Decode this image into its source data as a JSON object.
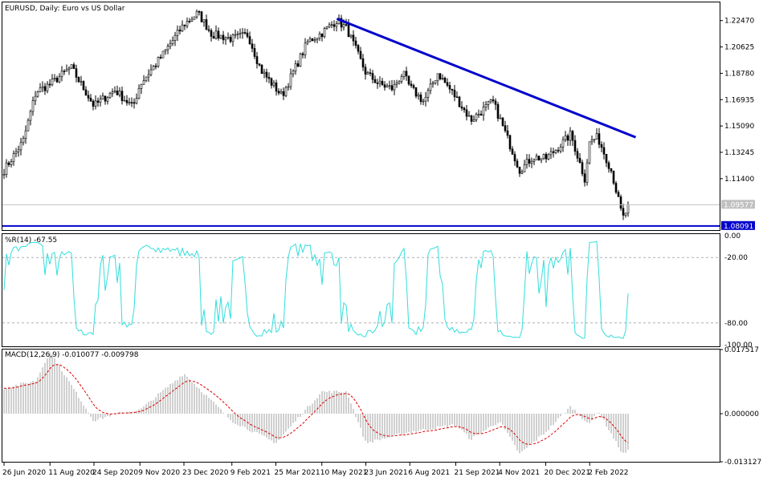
{
  "main": {
    "title": "EURUSD, Daily:  Euro vs US Dollar",
    "price_axis_labels": [
      "1.22470",
      "1.20625",
      "1.18780",
      "1.16935",
      "1.15090",
      "1.13245",
      "1.11400"
    ],
    "current_price_label": "1.09577",
    "support_price_label": "1.08091",
    "colors": {
      "candle": "#000000",
      "trendline": "#0000cc",
      "support_line": "#0000cc",
      "current_line": "#c0c0c0"
    }
  },
  "wpr": {
    "label": "%R(14) -67.55",
    "axis_labels": [
      "0.00",
      "-20.00",
      "-80.00",
      "-100.00"
    ],
    "color": "#33dddd"
  },
  "macd": {
    "label": "MACD(12,26,9) -0.010077 -0.009798",
    "axis_labels": [
      "0.017517",
      "0.000000",
      "-0.013127"
    ],
    "histogram_color": "#a0a0a0",
    "signal_color": "#dd0000"
  },
  "time_axis_labels": [
    "26 Jun 2020",
    "11 Aug 2020",
    "24 Sep 2020",
    "9 Nov 2020",
    "23 Dec 2020",
    "9 Feb 2021",
    "25 Mar 2021",
    "10 May 2021",
    "23 Jun 2021",
    "6 Aug 2021",
    "21 Sep 2021",
    "4 Nov 2021",
    "20 Dec 2021",
    "2 Feb 2022"
  ],
  "chart_data": [
    {
      "type": "candlestick",
      "title": "EURUSD, Daily:  Euro vs US Dollar",
      "x_range": [
        "26 Jun 2020",
        "Mar 2022"
      ],
      "ylim": [
        1.078,
        1.238
      ],
      "close_path": [
        {
          "x": "26 Jun 2020",
          "y": 1.12
        },
        {
          "x": "15 Jul 2020",
          "y": 1.14
        },
        {
          "x": "28 Jul 2020",
          "y": 1.175
        },
        {
          "x": "11 Aug 2020",
          "y": 1.18
        },
        {
          "x": "1 Sep 2020",
          "y": 1.192
        },
        {
          "x": "24 Sep 2020",
          "y": 1.165
        },
        {
          "x": "15 Oct 2020",
          "y": 1.176
        },
        {
          "x": "2 Nov 2020",
          "y": 1.164
        },
        {
          "x": "9 Nov 2020",
          "y": 1.18
        },
        {
          "x": "1 Dec 2020",
          "y": 1.2
        },
        {
          "x": "23 Dec 2020",
          "y": 1.222
        },
        {
          "x": "6 Jan 2021",
          "y": 1.23
        },
        {
          "x": "20 Jan 2021",
          "y": 1.215
        },
        {
          "x": "9 Feb 2021",
          "y": 1.212
        },
        {
          "x": "25 Feb 2021",
          "y": 1.215
        },
        {
          "x": "10 Mar 2021",
          "y": 1.19
        },
        {
          "x": "31 Mar 2021",
          "y": 1.172
        },
        {
          "x": "26 Apr 2021",
          "y": 1.21
        },
        {
          "x": "10 May 2021",
          "y": 1.216
        },
        {
          "x": "25 May 2021",
          "y": 1.225
        },
        {
          "x": "4 Jun 2021",
          "y": 1.219
        },
        {
          "x": "23 Jun 2021",
          "y": 1.188
        },
        {
          "x": "7 Jul 2021",
          "y": 1.18
        },
        {
          "x": "20 Jul 2021",
          "y": 1.177
        },
        {
          "x": "30 Jul 2021",
          "y": 1.188
        },
        {
          "x": "6 Aug 2021",
          "y": 1.178
        },
        {
          "x": "20 Aug 2021",
          "y": 1.168
        },
        {
          "x": "3 Sep 2021",
          "y": 1.188
        },
        {
          "x": "21 Sep 2021",
          "y": 1.171
        },
        {
          "x": "6 Oct 2021",
          "y": 1.155
        },
        {
          "x": "28 Oct 2021",
          "y": 1.168
        },
        {
          "x": "4 Nov 2021",
          "y": 1.156
        },
        {
          "x": "24 Nov 2021",
          "y": 1.12
        },
        {
          "x": "7 Dec 2021",
          "y": 1.129
        },
        {
          "x": "20 Dec 2021",
          "y": 1.128
        },
        {
          "x": "31 Dec 2021",
          "y": 1.135
        },
        {
          "x": "14 Jan 2022",
          "y": 1.145
        },
        {
          "x": "28 Jan 2022",
          "y": 1.114
        },
        {
          "x": "2 Feb 2022",
          "y": 1.14
        },
        {
          "x": "10 Feb 2022",
          "y": 1.143
        },
        {
          "x": "24 Feb 2022",
          "y": 1.119
        },
        {
          "x": "7 Mar 2022",
          "y": 1.086
        },
        {
          "x": "14 Mar 2022",
          "y": 1.096
        }
      ],
      "trendline": {
        "from": {
          "x": "25 May 2021",
          "y": 1.226
        },
        "to": {
          "x": "Mar 2022",
          "y": 1.143
        }
      },
      "support_level": 1.08091,
      "current_price": 1.09577
    },
    {
      "type": "line",
      "title": "%R(14) -67.55",
      "ylim": [
        -100,
        0
      ],
      "levels": [
        -20,
        -80
      ],
      "last_value": -67.55
    },
    {
      "type": "bar",
      "title": "MACD(12,26,9) -0.010077 -0.009798",
      "ylim": [
        -0.013127,
        0.017517
      ],
      "macd_last": -0.010077,
      "signal_last": -0.009798,
      "histogram_path": [
        {
          "x": "26 Jun 2020",
          "y": 0.007
        },
        {
          "x": "28 Jul 2020",
          "y": 0.009
        },
        {
          "x": "11 Aug 2020",
          "y": 0.017
        },
        {
          "x": "24 Sep 2020",
          "y": -0.002
        },
        {
          "x": "15 Oct 2020",
          "y": 0.0
        },
        {
          "x": "9 Nov 2020",
          "y": 0.001
        },
        {
          "x": "23 Dec 2020",
          "y": 0.011
        },
        {
          "x": "9 Feb 2021",
          "y": -0.002
        },
        {
          "x": "25 Mar 2021",
          "y": -0.008
        },
        {
          "x": "10 May 2021",
          "y": 0.006
        },
        {
          "x": "4 Jun 2021",
          "y": 0.006
        },
        {
          "x": "23 Jun 2021",
          "y": -0.008
        },
        {
          "x": "6 Aug 2021",
          "y": -0.005
        },
        {
          "x": "21 Sep 2021",
          "y": -0.003
        },
        {
          "x": "6 Oct 2021",
          "y": -0.007
        },
        {
          "x": "4 Nov 2021",
          "y": -0.002
        },
        {
          "x": "24 Nov 2021",
          "y": -0.011
        },
        {
          "x": "20 Dec 2021",
          "y": -0.005
        },
        {
          "x": "14 Jan 2022",
          "y": 0.002
        },
        {
          "x": "2 Feb 2022",
          "y": -0.003
        },
        {
          "x": "10 Feb 2022",
          "y": 0.001
        },
        {
          "x": "7 Mar 2022",
          "y": -0.011
        },
        {
          "x": "14 Mar 2022",
          "y": -0.01
        }
      ]
    }
  ]
}
